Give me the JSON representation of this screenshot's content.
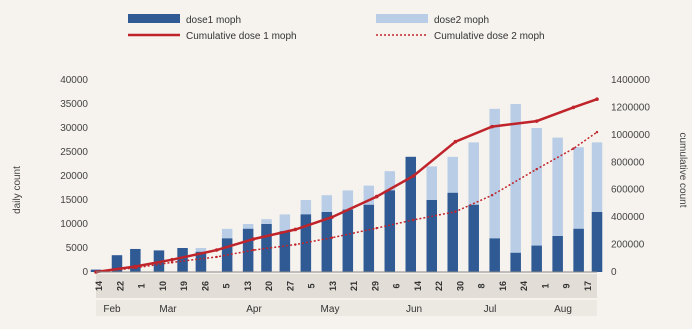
{
  "chart_data": {
    "type": "bar",
    "title": "",
    "legend": {
      "placement": "top",
      "entries": [
        {
          "label": "dose1 moph",
          "kind": "bar",
          "color": "#2f5a93"
        },
        {
          "label": "dose2 moph",
          "kind": "bar",
          "color": "#b9cde6"
        },
        {
          "label": "Cumulative dose 1 moph",
          "kind": "line",
          "color": "#c0242b"
        },
        {
          "label": "Cumulative dose 2 moph",
          "kind": "dotted-line",
          "color": "#c0242b"
        }
      ]
    },
    "ylabel_left": "daily count",
    "ylabel_right": "cumulative count",
    "ylim_left": [
      0,
      40000
    ],
    "ylim_right": [
      0,
      1400000
    ],
    "yticks_left": [
      "0",
      "5000",
      "10000",
      "15000",
      "20000",
      "25000",
      "30000",
      "35000",
      "40000"
    ],
    "yticks_right": [
      "0",
      "200000",
      "400000",
      "600000",
      "800000",
      "1000000",
      "1200000",
      "1400000"
    ],
    "x_tick_labels": [
      "14",
      "22",
      "1",
      "10",
      "19",
      "26",
      "5",
      "13",
      "20",
      "27",
      "5",
      "13",
      "21",
      "29",
      "6",
      "14",
      "22",
      "30",
      "8",
      "16",
      "24",
      "1",
      "9",
      "17"
    ],
    "month_labels": [
      "Feb",
      "Mar",
      "Apr",
      "May",
      "Jun",
      "Jul",
      "Aug"
    ],
    "x_start_date": "2021-02-14",
    "x_end_date": "2021-08-24",
    "grid": false,
    "series": [
      {
        "name": "dose1 moph",
        "type": "bar",
        "axis": "left",
        "x": [
          "2021-02-14",
          "2021-02-22",
          "2021-03-01",
          "2021-03-10",
          "2021-03-19",
          "2021-03-26",
          "2021-04-05",
          "2021-04-13",
          "2021-04-20",
          "2021-04-27",
          "2021-05-05",
          "2021-05-13",
          "2021-05-21",
          "2021-05-29",
          "2021-06-06",
          "2021-06-14",
          "2021-06-22",
          "2021-06-30",
          "2021-07-08",
          "2021-07-16",
          "2021-07-24",
          "2021-08-01",
          "2021-08-09",
          "2021-08-17",
          "2021-08-24"
        ],
        "values": [
          500,
          3500,
          4800,
          4500,
          5000,
          4200,
          7000,
          9000,
          10000,
          8500,
          12000,
          12500,
          13000,
          14000,
          17000,
          24000,
          15000,
          16500,
          14000,
          7000,
          4000,
          5500,
          7500,
          9000,
          12500
        ]
      },
      {
        "name": "dose2 moph",
        "type": "bar",
        "axis": "left",
        "x": [
          "2021-02-14",
          "2021-02-22",
          "2021-03-01",
          "2021-03-10",
          "2021-03-19",
          "2021-03-26",
          "2021-04-05",
          "2021-04-13",
          "2021-04-20",
          "2021-04-27",
          "2021-05-05",
          "2021-05-13",
          "2021-05-21",
          "2021-05-29",
          "2021-06-06",
          "2021-06-14",
          "2021-06-22",
          "2021-06-30",
          "2021-07-08",
          "2021-07-16",
          "2021-07-24",
          "2021-08-01",
          "2021-08-09",
          "2021-08-17",
          "2021-08-24"
        ],
        "values": [
          0,
          0,
          0,
          0,
          0,
          5000,
          9000,
          10000,
          11000,
          12000,
          15000,
          16000,
          17000,
          18000,
          21000,
          23000,
          22000,
          24000,
          27000,
          34000,
          35000,
          30000,
          28000,
          26000,
          27000
        ]
      },
      {
        "name": "Cumulative dose 1 moph",
        "type": "line",
        "axis": "right",
        "x": [
          "2021-02-14",
          "2021-03-01",
          "2021-03-15",
          "2021-04-01",
          "2021-04-15",
          "2021-05-01",
          "2021-05-15",
          "2021-06-01",
          "2021-06-15",
          "2021-07-01",
          "2021-07-15",
          "2021-08-01",
          "2021-08-15",
          "2021-08-24"
        ],
        "values": [
          0,
          40000,
          90000,
          160000,
          240000,
          310000,
          400000,
          550000,
          700000,
          950000,
          1060000,
          1100000,
          1200000,
          1260000
        ]
      },
      {
        "name": "Cumulative dose 2 moph",
        "type": "dotted-line",
        "axis": "right",
        "x": [
          "2021-02-14",
          "2021-03-01",
          "2021-03-15",
          "2021-04-01",
          "2021-04-15",
          "2021-05-01",
          "2021-05-15",
          "2021-06-01",
          "2021-06-15",
          "2021-07-01",
          "2021-07-15",
          "2021-08-01",
          "2021-08-15",
          "2021-08-24"
        ],
        "values": [
          0,
          30000,
          70000,
          110000,
          160000,
          200000,
          250000,
          320000,
          380000,
          440000,
          560000,
          750000,
          900000,
          1020000
        ]
      }
    ]
  }
}
